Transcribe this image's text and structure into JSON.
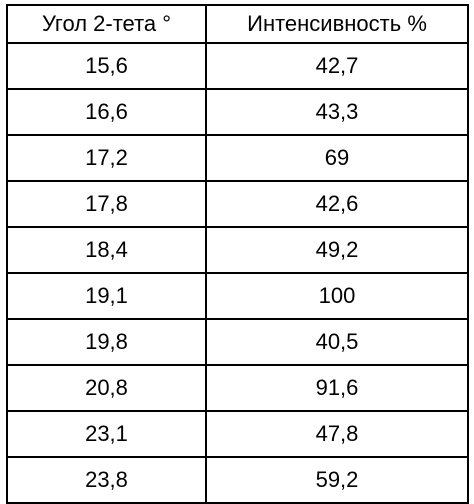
{
  "table": {
    "headers": [
      "Угол 2-тета °",
      "Интенсивность %"
    ],
    "rows": [
      [
        "15,6",
        "42,7"
      ],
      [
        "16,6",
        "43,3"
      ],
      [
        "17,2",
        "69"
      ],
      [
        "17,8",
        "42,6"
      ],
      [
        "18,4",
        "49,2"
      ],
      [
        "19,1",
        "100"
      ],
      [
        "19,8",
        "40,5"
      ],
      [
        "20,8",
        "91,6"
      ],
      [
        "23,1",
        "47,8"
      ],
      [
        "23,8",
        "59,2"
      ]
    ]
  }
}
